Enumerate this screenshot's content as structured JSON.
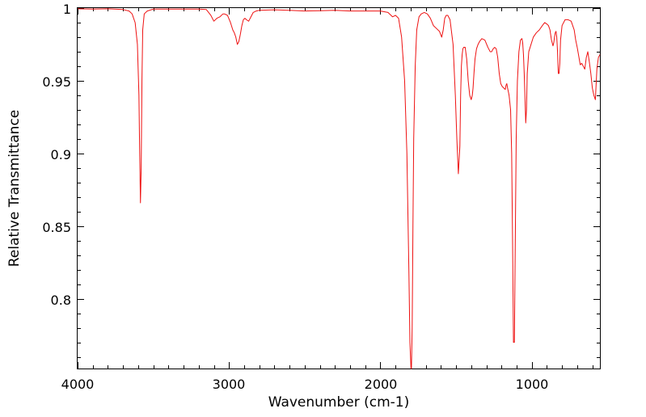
{
  "chart_data": {
    "type": "line",
    "title": "",
    "xlabel": "Wavenumber (cm-1)",
    "ylabel": "Relative Transmittance",
    "xlim": [
      4000,
      550
    ],
    "x_reversed": true,
    "ylim": [
      0.752,
      1.0
    ],
    "x_ticks": [
      4000,
      3000,
      2000,
      1000
    ],
    "x_tick_labels": [
      "4000",
      "3000",
      "2000",
      "1000"
    ],
    "y_ticks": [
      1.0,
      0.95,
      0.9,
      0.85,
      0.8
    ],
    "y_tick_labels": [
      "1",
      "0.95",
      "0.9",
      "0.85",
      "0.8"
    ],
    "grid": false,
    "line_color": "#ee1111",
    "series": [
      {
        "x": [
          4000,
          3900,
          3800,
          3700,
          3660,
          3640,
          3620,
          3605,
          3595,
          3590,
          3585,
          3580,
          3575,
          3570,
          3560,
          3540,
          3500,
          3400,
          3300,
          3200,
          3150,
          3120,
          3100,
          3080,
          3060,
          3040,
          3030,
          3010,
          2990,
          2975,
          2965,
          2955,
          2945,
          2935,
          2925,
          2915,
          2905,
          2895,
          2885,
          2870,
          2855,
          2840,
          2820,
          2800,
          2700,
          2600,
          2500,
          2400,
          2300,
          2200,
          2100,
          2000,
          1950,
          1920,
          1900,
          1880,
          1860,
          1840,
          1825,
          1812,
          1805,
          1798,
          1795,
          1790,
          1785,
          1780,
          1770,
          1760,
          1745,
          1730,
          1710,
          1690,
          1670,
          1650,
          1630,
          1610,
          1595,
          1585,
          1575,
          1565,
          1555,
          1540,
          1520,
          1505,
          1495,
          1485,
          1475,
          1470,
          1465,
          1460,
          1455,
          1450,
          1440,
          1430,
          1420,
          1410,
          1400,
          1393,
          1388,
          1382,
          1375,
          1365,
          1355,
          1345,
          1330,
          1310,
          1290,
          1275,
          1265,
          1255,
          1245,
          1235,
          1225,
          1215,
          1205,
          1195,
          1185,
          1175,
          1170,
          1165,
          1160,
          1150,
          1140,
          1133,
          1127,
          1121,
          1115,
          1109,
          1103,
          1095,
          1085,
          1075,
          1065,
          1060,
          1055,
          1050,
          1044,
          1040,
          1035,
          1030,
          1020,
          1005,
          990,
          970,
          950,
          930,
          915,
          900,
          890,
          880,
          870,
          860,
          855,
          850,
          845,
          840,
          835,
          830,
          825,
          820,
          815,
          810,
          800,
          780,
          760,
          740,
          730,
          720,
          710,
          700,
          690,
          680,
          670,
          660,
          650,
          640,
          630,
          620,
          610,
          600,
          590,
          580,
          570,
          560,
          550
        ],
        "y": [
          0.9995,
          0.9993,
          0.9995,
          0.999,
          0.998,
          0.996,
          0.99,
          0.975,
          0.94,
          0.9,
          0.866,
          0.89,
          0.95,
          0.985,
          0.996,
          0.998,
          0.9993,
          0.9993,
          0.9993,
          0.9993,
          0.999,
          0.995,
          0.991,
          0.993,
          0.994,
          0.996,
          0.996,
          0.995,
          0.99,
          0.985,
          0.983,
          0.98,
          0.975,
          0.977,
          0.982,
          0.988,
          0.992,
          0.993,
          0.992,
          0.991,
          0.994,
          0.997,
          0.998,
          0.9985,
          0.9988,
          0.9985,
          0.998,
          0.9982,
          0.9985,
          0.998,
          0.998,
          0.998,
          0.997,
          0.994,
          0.995,
          0.993,
          0.98,
          0.95,
          0.9,
          0.82,
          0.77,
          0.752,
          0.752,
          0.78,
          0.85,
          0.91,
          0.96,
          0.985,
          0.994,
          0.996,
          0.997,
          0.996,
          0.993,
          0.988,
          0.986,
          0.984,
          0.98,
          0.985,
          0.993,
          0.995,
          0.995,
          0.992,
          0.975,
          0.94,
          0.91,
          0.886,
          0.905,
          0.94,
          0.96,
          0.968,
          0.972,
          0.973,
          0.973,
          0.965,
          0.95,
          0.94,
          0.937,
          0.94,
          0.945,
          0.955,
          0.965,
          0.972,
          0.975,
          0.977,
          0.979,
          0.978,
          0.973,
          0.97,
          0.97,
          0.972,
          0.973,
          0.972,
          0.966,
          0.955,
          0.948,
          0.946,
          0.945,
          0.944,
          0.947,
          0.948,
          0.945,
          0.94,
          0.93,
          0.9,
          0.84,
          0.77,
          0.77,
          0.84,
          0.91,
          0.95,
          0.97,
          0.978,
          0.979,
          0.976,
          0.968,
          0.955,
          0.935,
          0.921,
          0.93,
          0.955,
          0.97,
          0.975,
          0.98,
          0.983,
          0.985,
          0.988,
          0.99,
          0.989,
          0.988,
          0.985,
          0.978,
          0.974,
          0.976,
          0.98,
          0.983,
          0.984,
          0.98,
          0.97,
          0.955,
          0.955,
          0.962,
          0.978,
          0.988,
          0.992,
          0.992,
          0.991,
          0.988,
          0.985,
          0.978,
          0.973,
          0.967,
          0.961,
          0.962,
          0.96,
          0.958,
          0.966,
          0.97,
          0.963,
          0.955,
          0.945,
          0.94,
          0.937,
          0.958,
          0.966,
          0.968
        ]
      }
    ]
  }
}
